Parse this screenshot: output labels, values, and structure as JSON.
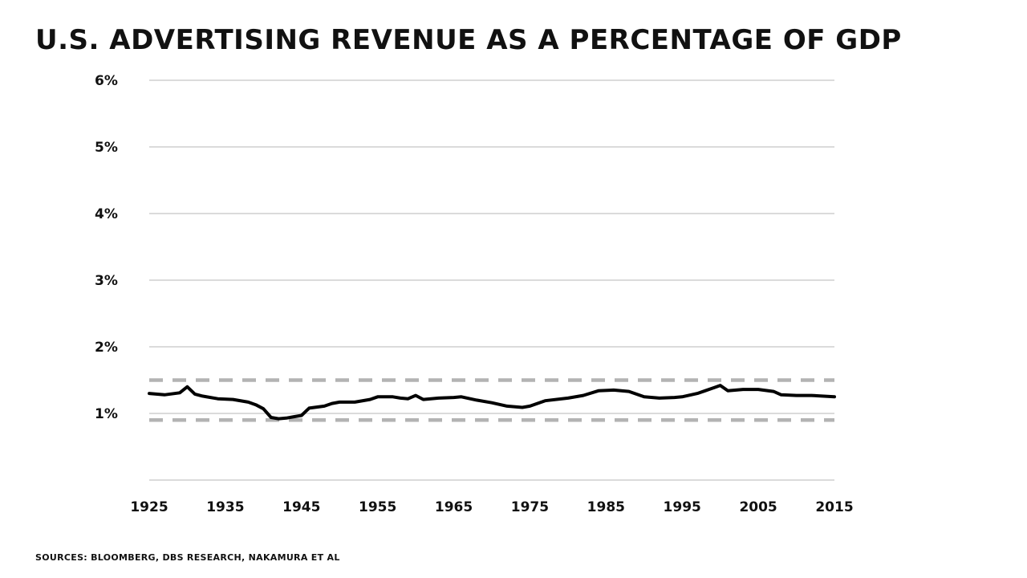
{
  "title": "U.S. Advertising Revenue as a Percentage of GDP",
  "source": "Sources: Bloomberg, DBS Research, Nakamura et al",
  "colors": {
    "line": "#000000",
    "grid": "#cfcfcf",
    "band": "#b3b3b3",
    "text": "#111111"
  },
  "chart_data": {
    "type": "line",
    "title": "U.S. Advertising Revenue as a Percentage of GDP",
    "xlabel": "",
    "ylabel": "",
    "xlim": [
      1925,
      2015
    ],
    "ylim": [
      0,
      6
    ],
    "x_ticks": [
      1925,
      1935,
      1945,
      1955,
      1965,
      1975,
      1985,
      1995,
      2005,
      2015
    ],
    "y_ticks": [
      1,
      2,
      3,
      4,
      5,
      6
    ],
    "x_tick_labels": [
      "1925",
      "1935",
      "1945",
      "1955",
      "1965",
      "1975",
      "1985",
      "1995",
      "2005",
      "2015"
    ],
    "y_tick_labels": [
      "1%",
      "2%",
      "3%",
      "4%",
      "5%",
      "6%"
    ],
    "grid": true,
    "reference_lines": [
      {
        "y": 1.5,
        "style": "dashed"
      },
      {
        "y": 0.9,
        "style": "dashed"
      }
    ],
    "series": [
      {
        "x": [
          1925,
          1927,
          1929,
          1930,
          1931,
          1932,
          1934,
          1936,
          1938,
          1939,
          1940,
          1941,
          1942,
          1943,
          1944,
          1945,
          1946,
          1948,
          1949,
          1950,
          1952,
          1954,
          1955,
          1957,
          1958,
          1959,
          1960,
          1961,
          1963,
          1965,
          1966,
          1968,
          1970,
          1972,
          1974,
          1975,
          1977,
          1980,
          1982,
          1984,
          1986,
          1988,
          1990,
          1992,
          1994,
          1995,
          1997,
          1998,
          1999,
          2000,
          2001,
          2003,
          2005,
          2007,
          2008,
          2010,
          2012,
          2015
        ],
        "y": [
          1.3,
          1.28,
          1.31,
          1.4,
          1.29,
          1.26,
          1.22,
          1.21,
          1.17,
          1.13,
          1.07,
          0.94,
          0.92,
          0.93,
          0.95,
          0.97,
          1.08,
          1.11,
          1.15,
          1.17,
          1.17,
          1.21,
          1.25,
          1.25,
          1.23,
          1.22,
          1.27,
          1.21,
          1.23,
          1.24,
          1.25,
          1.2,
          1.16,
          1.11,
          1.09,
          1.11,
          1.19,
          1.23,
          1.27,
          1.34,
          1.35,
          1.33,
          1.25,
          1.23,
          1.24,
          1.25,
          1.3,
          1.34,
          1.38,
          1.42,
          1.34,
          1.36,
          1.36,
          1.33,
          1.28,
          1.27,
          1.27,
          1.25
        ]
      }
    ]
  }
}
